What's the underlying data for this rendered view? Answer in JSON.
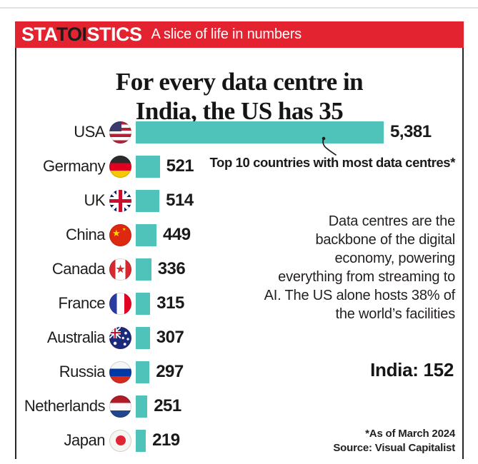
{
  "header": {
    "logo_prefix": "STA",
    "logo_highlight": "TOI",
    "logo_suffix": "STICS",
    "tagline": "A slice of life in numbers",
    "bar_color": "#e42330",
    "highlight_color": "#1d1d1b"
  },
  "title": "For every data centre in\nIndia, the US has 35",
  "chart_data": {
    "type": "bar",
    "orientation": "horizontal",
    "title": "For every data centre in India, the US has 35",
    "annotation": "Top 10 countries with most data centres*",
    "categories": [
      "USA",
      "Germany",
      "UK",
      "China",
      "Canada",
      "France",
      "Australia",
      "Russia",
      "Netherlands",
      "Japan"
    ],
    "values": [
      5381,
      521,
      514,
      449,
      336,
      315,
      307,
      297,
      251,
      219
    ],
    "value_labels": [
      "5,381",
      "521",
      "514",
      "449",
      "336",
      "315",
      "307",
      "297",
      "251",
      "219"
    ],
    "flags": [
      "usa",
      "germany",
      "uk",
      "china",
      "canada",
      "france",
      "australia",
      "russia",
      "netherlands",
      "japan"
    ],
    "bar_color": "#4fc2b9",
    "xlim": [
      0,
      5381
    ],
    "grid": false,
    "legend": "none"
  },
  "side_text": "Data centres are the\nbackbone of the digital\neconomy, powering\neverything from streaming to\nAI. The US alone hosts 38% of\nthe world’s facilities",
  "india_note": "India: 152",
  "footnote": "*As of March 2024\nSource: Visual Capitalist"
}
